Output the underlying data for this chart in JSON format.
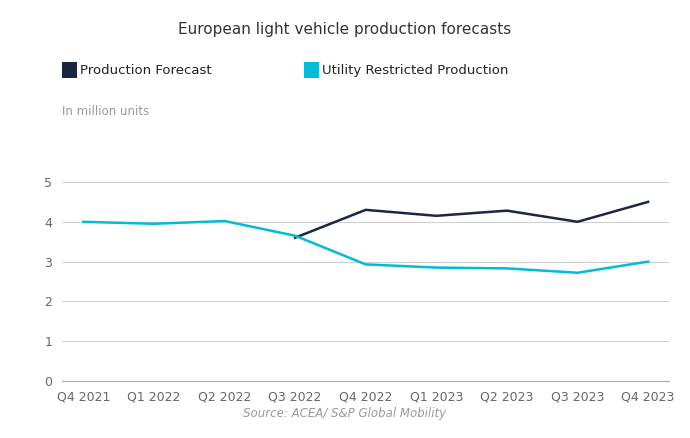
{
  "title": "European light vehicle production forecasts",
  "ylabel": "In million units",
  "source": "Source: ACEA/ S&P Global Mobility",
  "x_labels": [
    "Q4 2021",
    "Q1 2022",
    "Q2 2022",
    "Q3 2022",
    "Q4 2022",
    "Q1 2023",
    "Q2 2023",
    "Q3 2023",
    "Q4 2023"
  ],
  "production_forecast": {
    "label": "Production Forecast",
    "color": "#1a2744",
    "x_indices": [
      3,
      4,
      5,
      6,
      7,
      8
    ],
    "values": [
      3.6,
      4.3,
      4.15,
      4.28,
      4.0,
      4.5
    ]
  },
  "utility_restricted": {
    "label": "Utility Restricted Production",
    "color": "#00bcd4",
    "x_indices": [
      0,
      1,
      2,
      3,
      4,
      5,
      6,
      7,
      8
    ],
    "values": [
      4.0,
      3.95,
      4.02,
      3.65,
      2.93,
      2.85,
      2.83,
      2.72,
      3.0
    ]
  },
  "ylim": [
    0,
    5.5
  ],
  "yticks": [
    0,
    1,
    2,
    3,
    4,
    5
  ],
  "background_color": "#ffffff",
  "grid_color": "#d0d0d0",
  "line_width": 1.8,
  "title_fontsize": 11,
  "tick_fontsize": 9,
  "legend_fontsize": 9.5,
  "ylabel_fontsize": 8.5,
  "source_fontsize": 8.5
}
